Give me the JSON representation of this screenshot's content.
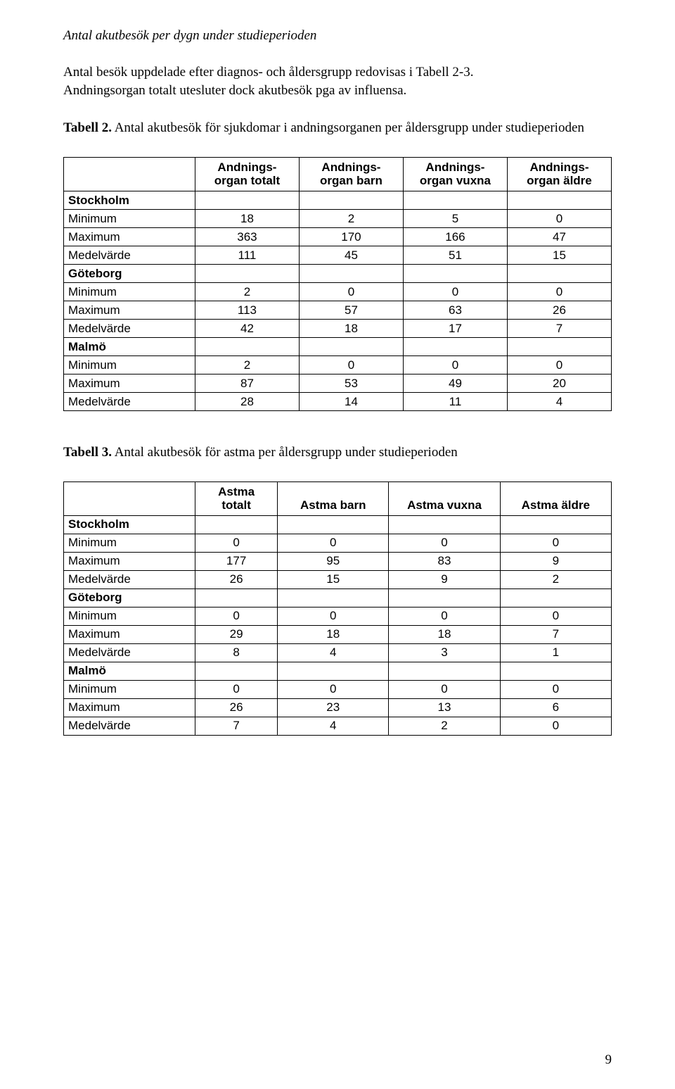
{
  "colors": {
    "background": "#ffffff",
    "text": "#000000",
    "border": "#000000"
  },
  "fonts": {
    "body_family": "Times New Roman",
    "body_size_pt": 14,
    "table_family": "Arial",
    "table_size_pt": 13
  },
  "heading": "Antal akutbesök per dygn under studieperioden",
  "intro_line1": "Antal besök uppdelade efter diagnos- och åldersgrupp redovisas i Tabell 2-3.",
  "intro_line2": "Andningsorgan totalt utesluter dock akutbesök pga av influensa.",
  "table2": {
    "caption_bold": "Tabell 2.",
    "caption_rest": " Antal akutbesök för sjukdomar i andningsorganen per åldersgrupp under studieperioden",
    "columns": [
      "",
      "Andnings-organ totalt",
      "Andnings-organ barn",
      "Andnings-organ vuxna",
      "Andnings-organ äldre"
    ],
    "col1_line1": "Andnings-",
    "col1_line2": "organ totalt",
    "col2_line1": "Andnings-",
    "col2_line2": "organ barn",
    "col3_line1": "Andnings-",
    "col3_line2": "organ vuxna",
    "col4_line1": "Andnings-",
    "col4_line2": "organ äldre",
    "groups": [
      {
        "name": "Stockholm",
        "rows": [
          {
            "label": "Minimum",
            "v": [
              18,
              2,
              5,
              0
            ]
          },
          {
            "label": "Maximum",
            "v": [
              363,
              170,
              166,
              47
            ]
          },
          {
            "label": "Medelvärde",
            "v": [
              111,
              45,
              51,
              15
            ]
          }
        ]
      },
      {
        "name": "Göteborg",
        "rows": [
          {
            "label": "Minimum",
            "v": [
              2,
              0,
              0,
              0
            ]
          },
          {
            "label": "Maximum",
            "v": [
              113,
              57,
              63,
              26
            ]
          },
          {
            "label": "Medelvärde",
            "v": [
              42,
              18,
              17,
              7
            ]
          }
        ]
      },
      {
        "name": "Malmö",
        "rows": [
          {
            "label": "Minimum",
            "v": [
              2,
              0,
              0,
              0
            ]
          },
          {
            "label": "Maximum",
            "v": [
              87,
              53,
              49,
              20
            ]
          },
          {
            "label": "Medelvärde",
            "v": [
              28,
              14,
              11,
              4
            ]
          }
        ]
      }
    ]
  },
  "table3": {
    "caption_bold": "Tabell 3.",
    "caption_rest": " Antal akutbesök för astma per åldersgrupp under studieperioden",
    "col1_line1": "Astma",
    "col1_line2": "totalt",
    "col2": "Astma barn",
    "col3": "Astma vuxna",
    "col4": "Astma äldre",
    "groups": [
      {
        "name": "Stockholm",
        "rows": [
          {
            "label": "Minimum",
            "v": [
              0,
              0,
              0,
              0
            ]
          },
          {
            "label": "Maximum",
            "v": [
              177,
              95,
              83,
              9
            ]
          },
          {
            "label": "Medelvärde",
            "v": [
              26,
              15,
              9,
              2
            ]
          }
        ]
      },
      {
        "name": "Göteborg",
        "rows": [
          {
            "label": "Minimum",
            "v": [
              0,
              0,
              0,
              0
            ]
          },
          {
            "label": "Maximum",
            "v": [
              29,
              18,
              18,
              7
            ]
          },
          {
            "label": "Medelvärde",
            "v": [
              8,
              4,
              3,
              1
            ]
          }
        ]
      },
      {
        "name": "Malmö",
        "rows": [
          {
            "label": "Minimum",
            "v": [
              0,
              0,
              0,
              0
            ]
          },
          {
            "label": "Maximum",
            "v": [
              26,
              23,
              13,
              6
            ]
          },
          {
            "label": "Medelvärde",
            "v": [
              7,
              4,
              2,
              0
            ]
          }
        ]
      }
    ]
  },
  "page_number": "9"
}
